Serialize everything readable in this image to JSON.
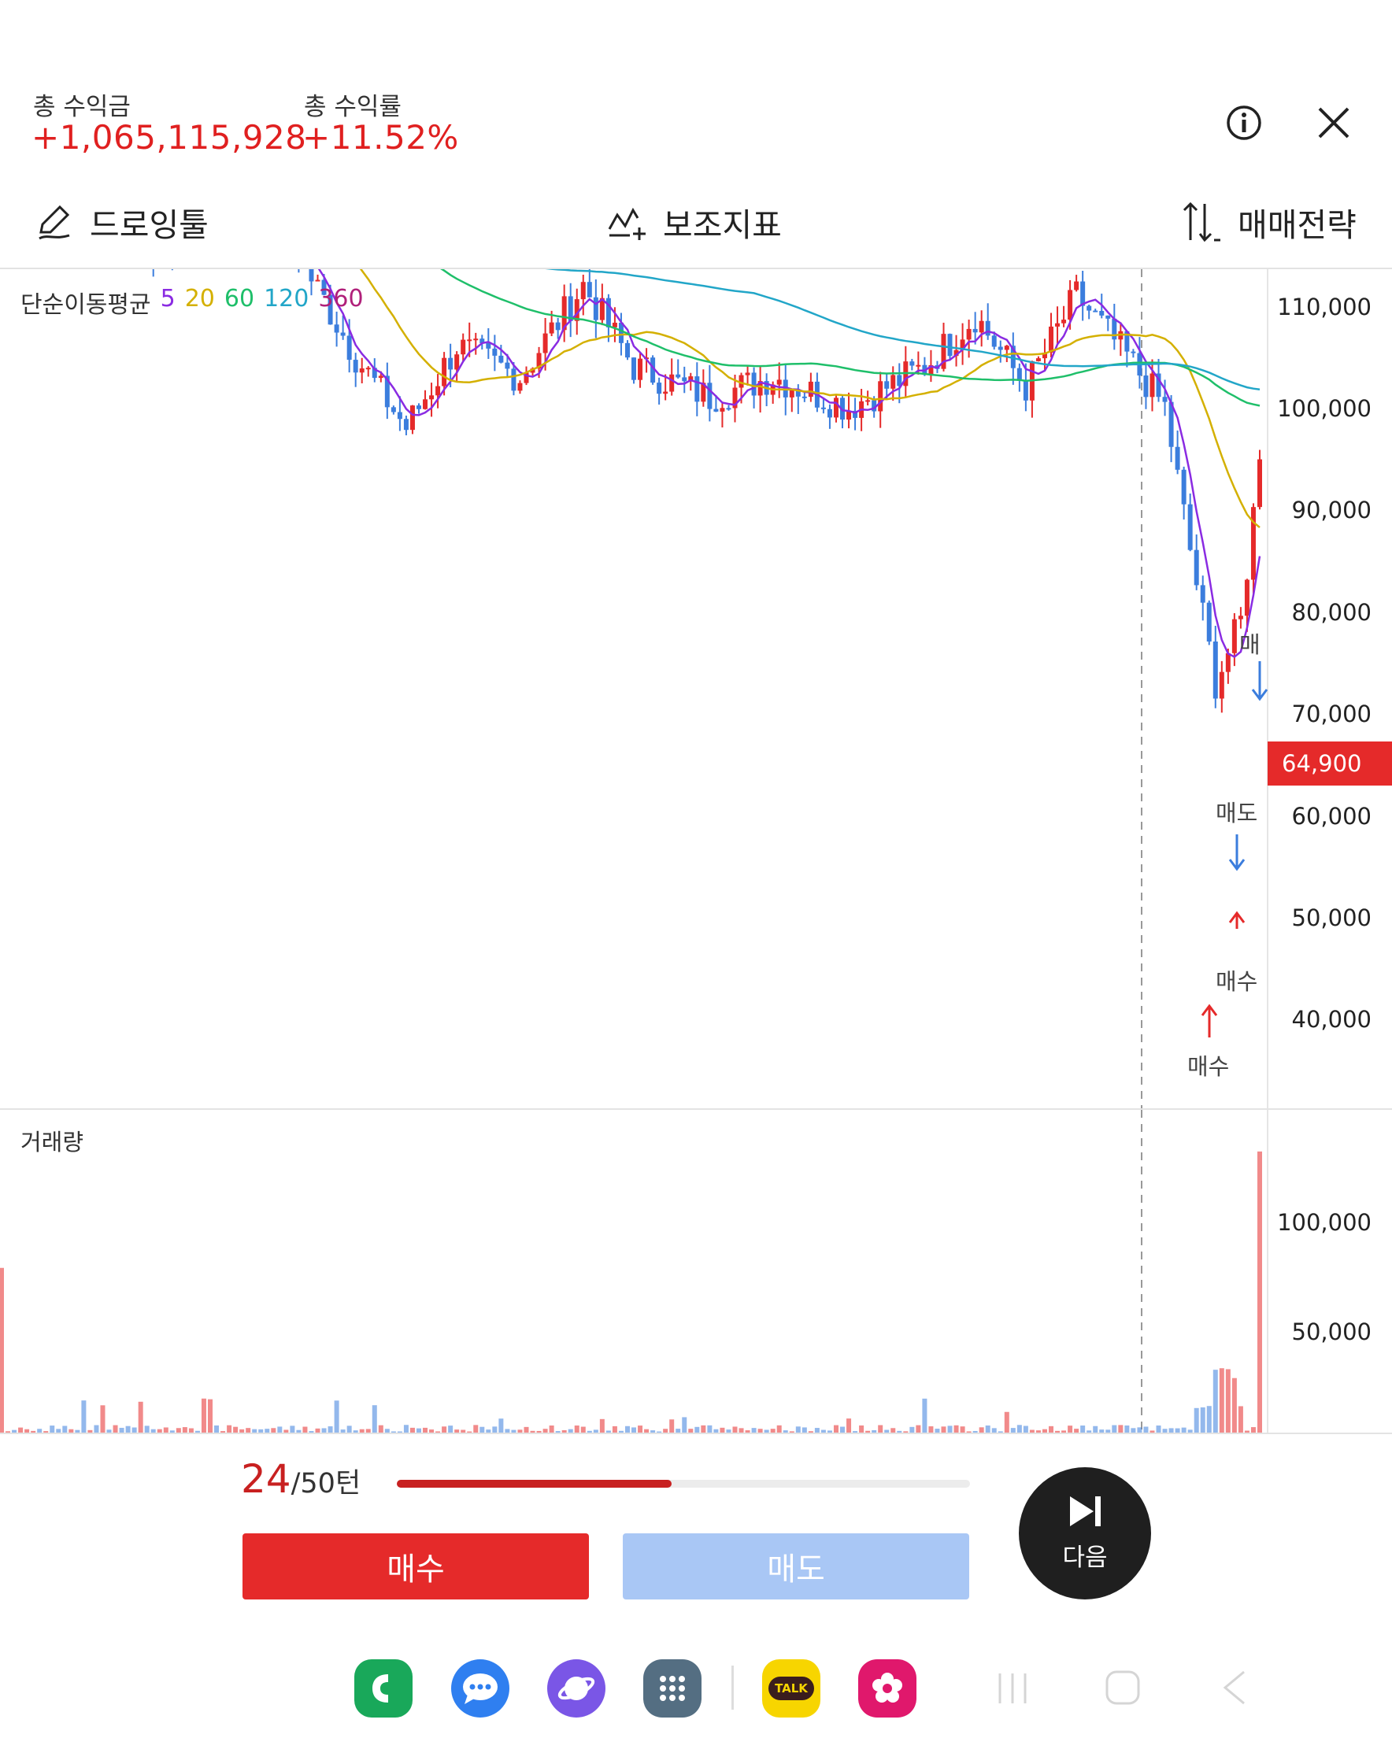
{
  "header": {
    "total_profit_label": "총 수익금",
    "total_profit_value": "+1,065,115,928",
    "total_return_label": "총 수익률",
    "total_return_value": "+11.52%"
  },
  "toolbar": {
    "drawing_tool": "드로잉툴",
    "indicators": "보조지표",
    "trade_strategy": "매매전략"
  },
  "price_chart": {
    "legend_title": "단순이동평균",
    "ma_periods": [
      "5",
      "20",
      "60",
      "120",
      "360"
    ],
    "ma_colors": [
      "#8a2be2",
      "#d4b000",
      "#1fbf6a",
      "#22a6c8",
      "#b0207a"
    ],
    "axis_ticks": [
      "110,000",
      "100,000",
      "90,000",
      "80,000",
      "70,000",
      "60,000",
      "50,000",
      "40,000"
    ],
    "current_price": "64,900",
    "annotations": {
      "buy1": "매수",
      "buy2": "매수",
      "sell1": "매도",
      "sell2": "매도"
    }
  },
  "volume_chart": {
    "title": "거래량",
    "axis_ticks": [
      "100,000",
      "50,000"
    ]
  },
  "turn": {
    "current": "24",
    "total_text": "/50턴",
    "progress": 0.48
  },
  "actions": {
    "buy": "매수",
    "sell": "매도",
    "next": "다음"
  },
  "colors": {
    "up": "#e52a2a",
    "down": "#3b7ddd",
    "sell_disabled": "#a9c7f5"
  },
  "dock": [
    "phone-icon",
    "messages-icon",
    "internet-icon",
    "apps-icon",
    "kakaotalk-icon",
    "gallery-icon"
  ],
  "dock_labels": {
    "kakao": "TALK"
  }
}
